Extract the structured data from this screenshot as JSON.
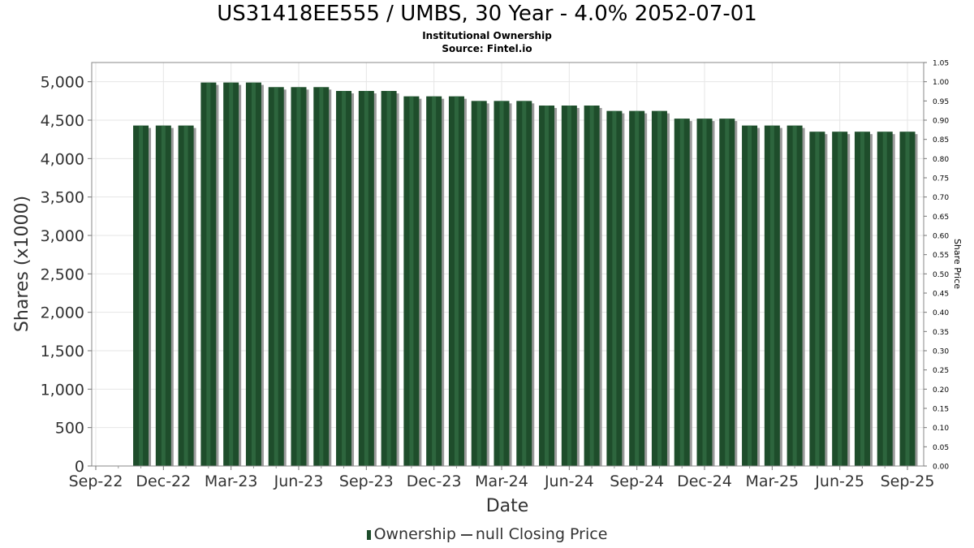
{
  "chart_data": {
    "type": "bar",
    "title": "US31418EE555 / UMBS, 30 Year - 4.0% 2052-07-01",
    "subtitle_lines": [
      "Institutional Ownership",
      "Source: Fintel.io"
    ],
    "xlabel": "Date",
    "ylabel": "Shares (x1000)",
    "y2label": "Share Price",
    "ylim": [
      0,
      5250
    ],
    "y2lim": [
      0,
      1.05
    ],
    "yticks": [
      "0",
      "500",
      "1,000",
      "1,500",
      "2,000",
      "2,500",
      "3,000",
      "3,500",
      "4,000",
      "4,500",
      "5,000"
    ],
    "y2ticks": [
      "0.00",
      "0.05",
      "0.10",
      "0.15",
      "0.20",
      "0.25",
      "0.30",
      "0.35",
      "0.40",
      "0.45",
      "0.50",
      "0.55",
      "0.60",
      "0.65",
      "0.70",
      "0.75",
      "0.80",
      "0.85",
      "0.90",
      "0.95",
      "1.00",
      "1.05"
    ],
    "xticks": [
      "Sep-22",
      "Dec-22",
      "Mar-23",
      "Jun-23",
      "Sep-23",
      "Dec-23",
      "Mar-24",
      "Jun-24",
      "Sep-24",
      "Dec-24",
      "Mar-25",
      "Jun-25",
      "Sep-25"
    ],
    "grid": true,
    "legend_position": "bottom",
    "series": [
      {
        "name": "Ownership",
        "color": "#1e4d2b",
        "values": [
          4430,
          4430,
          4430,
          4990,
          4990,
          4990,
          4930,
          4930,
          4930,
          4880,
          4880,
          4880,
          4810,
          4810,
          4810,
          4750,
          4750,
          4750,
          4690,
          4690,
          4690,
          4620,
          4620,
          4620,
          4520,
          4520,
          4520,
          4430,
          4430,
          4430,
          4350,
          4350,
          4350,
          4350,
          4350
        ]
      },
      {
        "name": "null Closing Price",
        "color": "#444444",
        "values": []
      }
    ]
  }
}
